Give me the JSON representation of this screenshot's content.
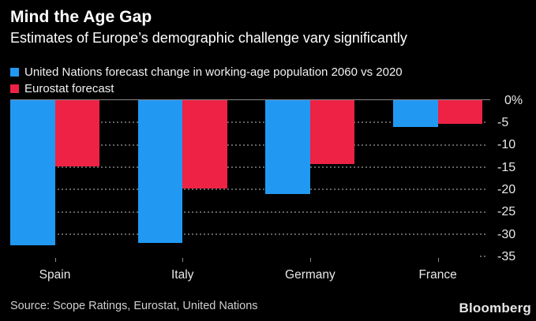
{
  "chart_data": {
    "type": "bar",
    "title": "Mind the Age Gap",
    "subtitle": "Estimates of Europe’s demographic challenge vary significantly",
    "categories": [
      "Spain",
      "Italy",
      "Germany",
      "France"
    ],
    "series": [
      {
        "name": "United Nations forecast change in working-age population 2060 vs 2020",
        "color": "#2199f3",
        "values": [
          -32.5,
          -32,
          -21,
          -6
        ]
      },
      {
        "name": "Eurostat forecast",
        "color": "#ed2244",
        "values": [
          -14.8,
          -19.8,
          -14.2,
          -5.3
        ]
      }
    ],
    "unit": "%",
    "ylim": [
      -35,
      0
    ],
    "y_ticks": [
      0,
      -5,
      -10,
      -15,
      -20,
      -25,
      -30,
      -35
    ],
    "y_tick_labels": [
      "0%",
      "-5",
      "-10",
      "-15",
      "-20",
      "-25",
      "-30",
      "-35"
    ],
    "grid": "dotted-horizontal",
    "legend_position": "top-left",
    "background": "#000000",
    "bar_colors": {
      "blue": "#2199f3",
      "red": "#ed2244"
    }
  },
  "footer": {
    "source": "Source:  Scope Ratings, Eurostat, United Nations",
    "brand": "Bloomberg"
  }
}
